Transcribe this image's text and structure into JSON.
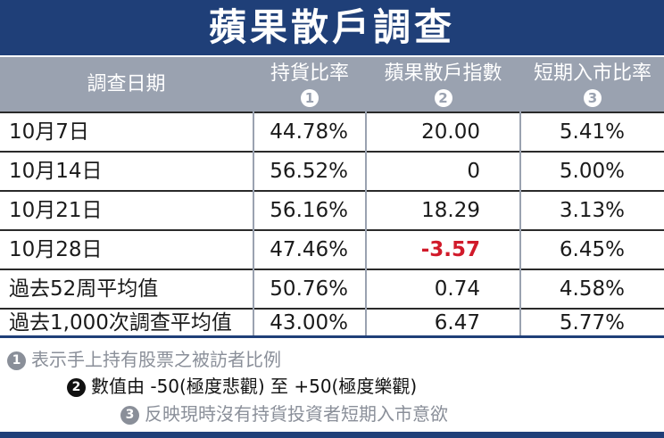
{
  "title": "蘋果散戶調查",
  "header": {
    "col0": "調查日期",
    "col1": "持貨比率",
    "col2": "蘋果散戶指數",
    "col3": "短期入市比率",
    "badge1": "1",
    "badge2": "2",
    "badge3": "3"
  },
  "rows": [
    {
      "label": "10月7日",
      "v1": "44.78%",
      "v2": "20.00",
      "v3": "5.41%"
    },
    {
      "label": "10月14日",
      "v1": "56.52%",
      "v2": "0",
      "v3": "5.00%"
    },
    {
      "label": "10月21日",
      "v1": "56.16%",
      "v2": "18.29",
      "v3": "3.13%"
    },
    {
      "label": "10月28日",
      "v1": "47.46%",
      "v2": "-3.57",
      "v3": "6.45%"
    },
    {
      "label": "過去52周平均值",
      "v1": "50.76%",
      "v2": "0.74",
      "v3": "4.58%"
    },
    {
      "label": "過去1,000次調查平均值",
      "v1": "43.00%",
      "v2": "6.47",
      "v3": "5.77%"
    }
  ],
  "footnotes": {
    "n1": "1",
    "t1": "表示手上持有股票之被訪者比例",
    "n2": "2",
    "t2": "數值由 -50(極度悲觀) 至 +50(極度樂觀)",
    "n3": "3",
    "t3": "反映現時沒有持貨投資者短期入市意欲"
  },
  "colors": {
    "title_bg": "#1f3f78",
    "header_bg": "#9aa2b0",
    "negative": "#d11a2a",
    "footnote1": "#8a8f99",
    "footnote2": "#111111",
    "footnote3": "#8a8f99"
  },
  "chart_data": {
    "type": "table",
    "title": "蘋果散戶調查",
    "columns": [
      "調查日期",
      "持貨比率",
      "蘋果散戶指數",
      "短期入市比率"
    ],
    "rows": [
      [
        "10月7日",
        "44.78%",
        "20.00",
        "5.41%"
      ],
      [
        "10月14日",
        "56.52%",
        "0",
        "5.00%"
      ],
      [
        "10月21日",
        "56.16%",
        "18.29",
        "3.13%"
      ],
      [
        "10月28日",
        "47.46%",
        "-3.57",
        "6.45%"
      ],
      [
        "過去52周平均值",
        "50.76%",
        "0.74",
        "4.58%"
      ],
      [
        "過去1,000次調查平均值",
        "43.00%",
        "6.47",
        "5.77%"
      ]
    ]
  }
}
